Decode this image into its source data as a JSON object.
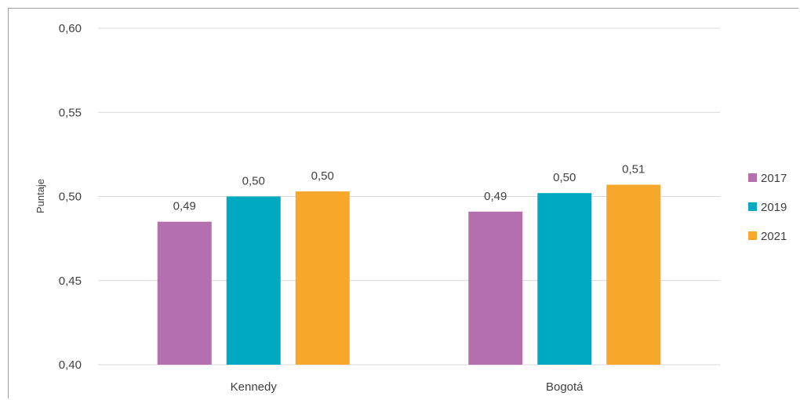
{
  "chart_data": {
    "type": "bar",
    "title": "",
    "xlabel": "",
    "ylabel": "Puntaje",
    "ylim": [
      0.4,
      0.6
    ],
    "yticks": [
      "0,40",
      "0,45",
      "0,50",
      "0,55",
      "0,60"
    ],
    "ytick_values": [
      0.4,
      0.45,
      0.5,
      0.55,
      0.6
    ],
    "categories": [
      "Kennedy",
      "Bogotá"
    ],
    "series": [
      {
        "name": "2017",
        "color": "#b36fae",
        "values": [
          0.485,
          0.491
        ],
        "labels": [
          "0,49",
          "0,49"
        ]
      },
      {
        "name": "2019",
        "color": "#00a9c2",
        "values": [
          0.5,
          0.502
        ],
        "labels": [
          "0,50",
          "0,50"
        ]
      },
      {
        "name": "2021",
        "color": "#f7a82a",
        "values": [
          0.503,
          0.507
        ],
        "labels": [
          "0,50",
          "0,51"
        ]
      }
    ],
    "grid": true,
    "legend_position": "right"
  }
}
